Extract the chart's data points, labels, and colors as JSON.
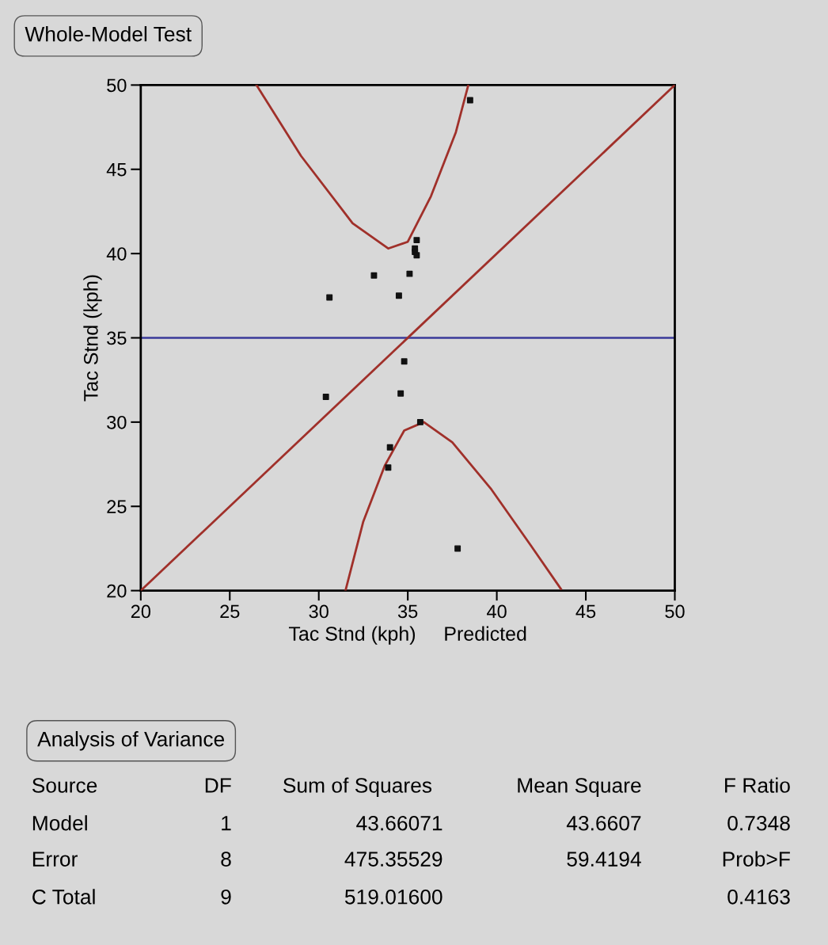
{
  "chart_data": {
    "type": "scatter",
    "title": "Whole-Model Test",
    "xlabel": "Tac Stnd (kph)     Predicted",
    "ylabel": "Tac Stnd (kph)",
    "xlim": [
      20,
      50
    ],
    "ylim": [
      20,
      50
    ],
    "xticks": [
      20,
      25,
      30,
      35,
      40,
      45,
      50
    ],
    "yticks": [
      20,
      25,
      30,
      35,
      40,
      45,
      50
    ],
    "grid": false,
    "legend": false,
    "marker": "square",
    "series": [
      {
        "color": "#111111",
        "x": [
          38.5,
          35.5,
          35.4,
          35.4,
          35.5,
          35.1,
          33.1,
          34.5,
          30.6,
          34.8,
          30.4,
          34.6,
          35.7,
          34.0,
          33.9,
          37.8
        ],
        "values": [
          49.1,
          40.8,
          40.3,
          40.1,
          39.9,
          38.8,
          38.7,
          37.5,
          37.4,
          33.6,
          31.5,
          31.7,
          30.0,
          28.5,
          27.3,
          22.5
        ]
      },
      {
        "type": "line",
        "color": "#a0302a",
        "marker": "none",
        "x": [
          20,
          50
        ],
        "values": [
          20,
          50
        ]
      },
      {
        "type": "line",
        "color": "#a0302a",
        "marker": "none",
        "x": [
          26.5,
          29.0,
          31.9,
          33.9,
          35.0,
          36.3,
          37.7,
          38.4
        ],
        "values": [
          50,
          45.8,
          41.8,
          40.3,
          40.7,
          43.4,
          47.2,
          50
        ]
      },
      {
        "type": "line",
        "color": "#a0302a",
        "marker": "none",
        "x": [
          31.5,
          32.5,
          33.7,
          34.8,
          35.9,
          37.5,
          39.7,
          41.9,
          43.6
        ],
        "values": [
          20,
          24.1,
          27.4,
          29.5,
          30.0,
          28.8,
          26.0,
          22.7,
          20.1
        ]
      }
    ],
    "ref_lines": [
      {
        "axis": "y",
        "value": 35,
        "color": "#3a3a9a"
      }
    ],
    "annotations": [
      "Analysis of Variance",
      "Source",
      "DF",
      "Sum of Squares",
      "Mean Square",
      "F Ratio",
      "Model",
      "1",
      "43.66071",
      "43.6607",
      "0.7348",
      "Error",
      "8",
      "475.35529",
      "59.4194",
      "Prob>F",
      "C Total",
      "9",
      "519.01600",
      null,
      "0.4163"
    ]
  }
}
